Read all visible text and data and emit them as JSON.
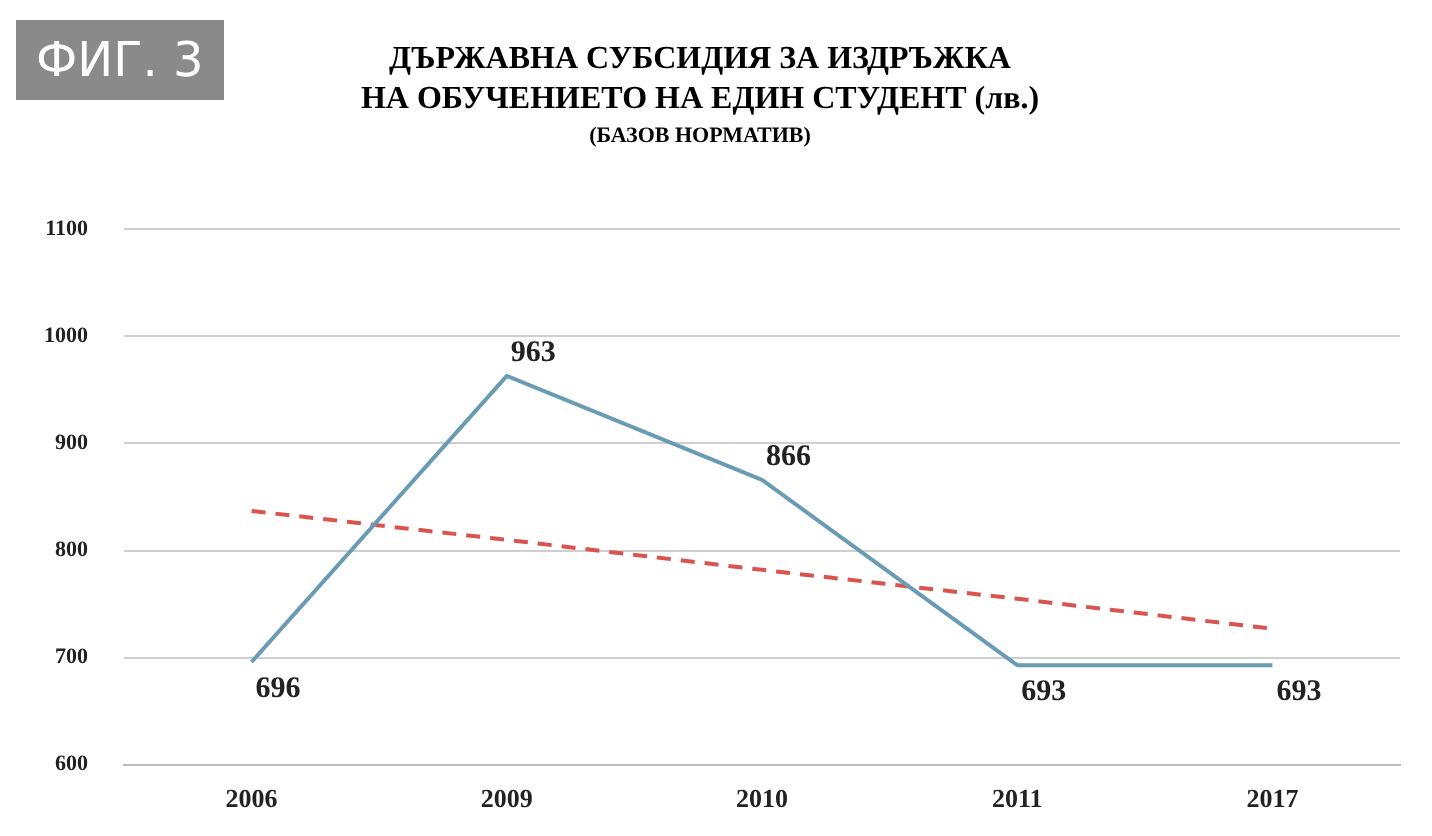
{
  "chart_data": {
    "type": "line",
    "title": "ДЪРЖАВНА СУБСИДИЯ ЗА ИЗДРЪЖКА\nНА ОБУЧЕНИЕТО НА ЕДИН СТУДЕНТ (лв.)",
    "subtitle": "(БАЗОВ НОРМАТИВ)",
    "annotations": [
      "ФИГ. 3"
    ],
    "categories": [
      "2006",
      "2009",
      "2010",
      "2011",
      "2017"
    ],
    "series": [
      {
        "color": "#6a9bb5",
        "values": [
          696,
          963,
          866,
          693,
          693
        ],
        "value_labels": [
          "696",
          "963",
          "866",
          "693",
          "693"
        ]
      },
      {
        "type": "line",
        "color": "#d9534f",
        "line_style": "dashed",
        "values": [
          837,
          810,
          782,
          755,
          727
        ]
      }
    ],
    "ylim": [
      600,
      1100
    ],
    "yticks": [
      600,
      700,
      800,
      900,
      1000,
      1100
    ],
    "grid": "y",
    "legend": false,
    "marker": "none"
  }
}
